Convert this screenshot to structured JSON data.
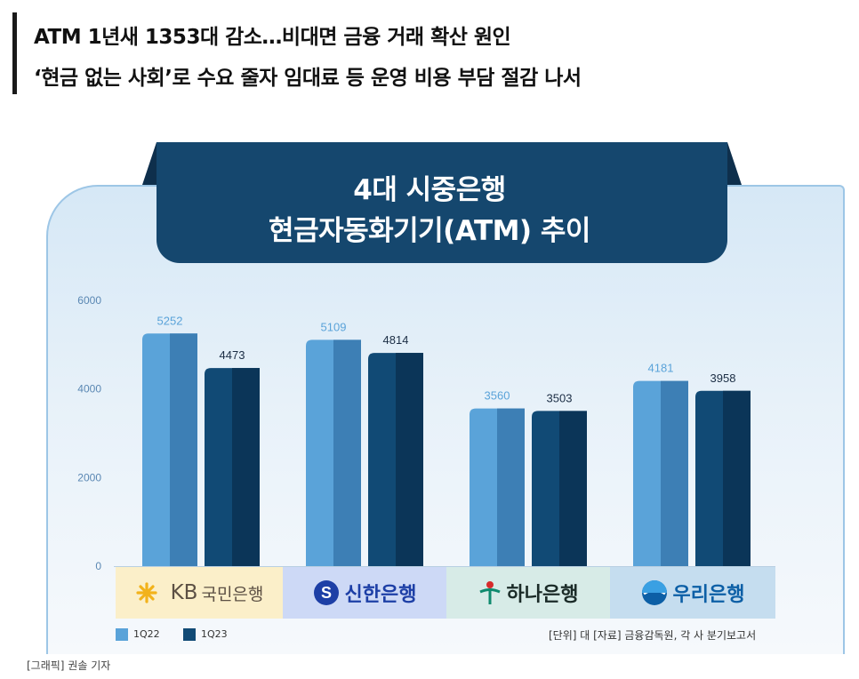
{
  "headline": {
    "line1": "ATM 1년새 1353대 감소…비대면 금융 거래 확산 원인",
    "line2": "‘현금 없는 사회’로 수요 줄자 임대료 등 운영 비용 부담 절감 나서"
  },
  "chart_data": {
    "type": "bar",
    "title_line1": "4대 시중은행",
    "title_line2": "현금자동화기기(ATM) 추이",
    "categories": [
      "KB국민은행",
      "신한은행",
      "하나은행",
      "우리은행"
    ],
    "series": [
      {
        "name": "1Q22",
        "values": [
          5252,
          5109,
          3560,
          4181
        ],
        "color": "#5aa3d9",
        "color_dark": "#3d7fb5"
      },
      {
        "name": "1Q23",
        "values": [
          4473,
          4814,
          3503,
          3958
        ],
        "color": "#114a75",
        "color_dark": "#0b3558"
      }
    ],
    "yticks": [
      "6000",
      "4000",
      "2000",
      "0"
    ],
    "ylim": [
      0,
      6000
    ],
    "grid": false,
    "legend": "bottom-left"
  },
  "logos": {
    "kb_mark": "KB",
    "kb_name": "국민은행",
    "shinhan": "신한은행",
    "hana": "하나은행",
    "woori": "우리은행"
  },
  "footer": {
    "legend_1q22": "1Q22",
    "legend_1q23": "1Q23",
    "source": "[단위] 대   [자료] 금융감독원, 각 사 분기보고서",
    "credit": "[그래픽] 권솔 기자"
  },
  "colors": {
    "ribbon": "#15476e",
    "light_bar": "#5aa3d9",
    "dark_bar": "#114a75"
  }
}
